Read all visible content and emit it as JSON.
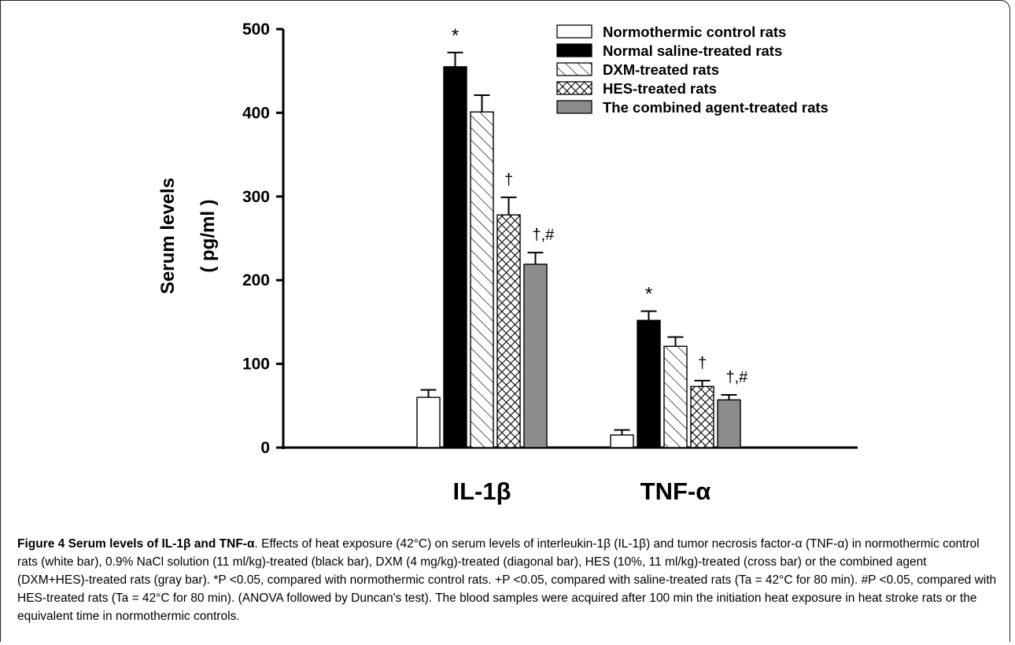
{
  "chart_data": {
    "type": "bar",
    "title": "",
    "ylabel_line1": "Serum levels",
    "ylabel_line2": "( pg/ml )",
    "xlabel": "",
    "ylim": [
      0,
      500
    ],
    "yticks": [
      "0",
      "100",
      "200",
      "300",
      "400",
      "500"
    ],
    "ytick_values": [
      0,
      100,
      200,
      300,
      400,
      500
    ],
    "grid": false,
    "legend_position": "top-right",
    "categories": [
      "IL-1β",
      "TNF-α"
    ],
    "series": [
      {
        "name": "Normothermic control rats",
        "values": [
          60,
          15
        ],
        "errors": [
          9,
          6
        ],
        "pattern": "white",
        "color": "#ffffff"
      },
      {
        "name": "Normal saline-treated rats",
        "values": [
          455,
          152
        ],
        "errors": [
          17,
          11
        ],
        "pattern": "black",
        "color": "#000000"
      },
      {
        "name": "DXM-treated rats",
        "values": [
          401,
          121
        ],
        "errors": [
          20,
          11
        ],
        "pattern": "diagonal",
        "color": "#ffffff"
      },
      {
        "name": "HES-treated rats",
        "values": [
          278,
          73
        ],
        "errors": [
          21,
          7
        ],
        "pattern": "cross",
        "color": "#ffffff"
      },
      {
        "name": "The combined agent-treated rats",
        "values": [
          219,
          57
        ],
        "errors": [
          14,
          6
        ],
        "pattern": "gray",
        "color": "#8c8c8c"
      }
    ],
    "annotations": [
      {
        "category": 0,
        "series": 1,
        "text": "*"
      },
      {
        "category": 0,
        "series": 3,
        "text": "†"
      },
      {
        "category": 0,
        "series": 4,
        "text": "†,#"
      },
      {
        "category": 1,
        "series": 1,
        "text": "*"
      },
      {
        "category": 1,
        "series": 3,
        "text": "†"
      },
      {
        "category": 1,
        "series": 4,
        "text": "†,#"
      }
    ]
  },
  "caption": {
    "title": "Figure 4 Serum levels of IL-1β and TNF-α",
    "body": ". Effects of heat exposure (42°C) on serum levels of interleukin-1β (IL-1β) and tumor necrosis factor-α (TNF-α) in normothermic control rats (white bar), 0.9% NaCl solution (11 ml/kg)-treated (black bar), DXM (4 mg/kg)-treated (diagonal bar), HES (10%, 11 ml/kg)-treated (cross bar) or the combined agent (DXM+HES)-treated rats (gray bar). *P <0.05, compared with normothermic control rats. +P <0.05, compared with saline-treated rats (Ta = 42°C for 80 min). #P <0.05, compared with HES-treated rats (Ta = 42°C for 80 min). (ANOVA followed by Duncan's test). The blood samples were acquired after 100 min the initiation heat exposure in heat stroke rats or the equivalent time in normothermic controls."
  }
}
